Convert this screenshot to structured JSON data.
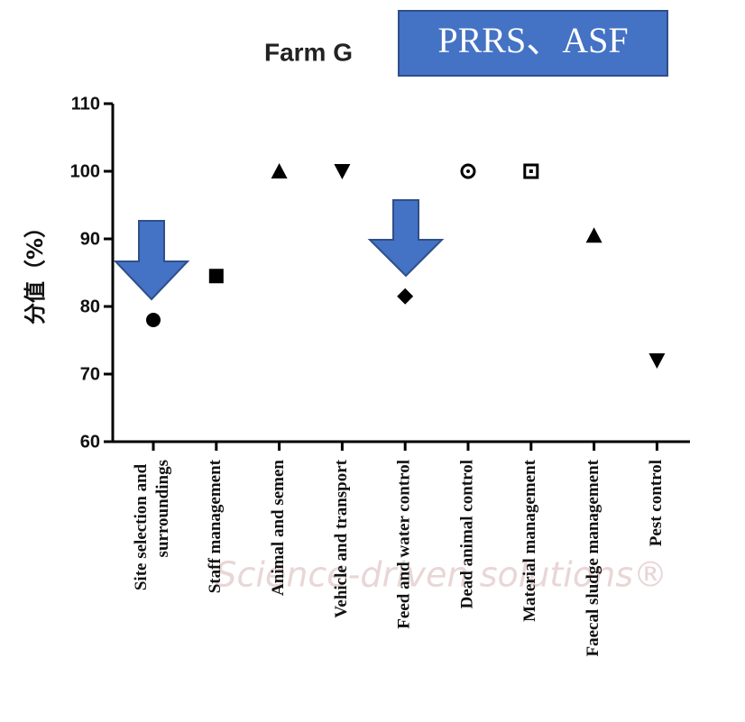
{
  "chart_data": {
    "type": "scatter",
    "title": "Farm G",
    "annotation": "PRRS、ASF",
    "y_label": "分值（%）",
    "watermark": "Science-driven solutions®",
    "categories": [
      "Site selection and surroundings",
      "Staff management",
      "Animal and semen",
      "Vehicle and transport",
      "Feed and water control",
      "Dead animal control",
      "Material management",
      "Faecal sludge management",
      "Pest control"
    ],
    "values": [
      78,
      84.5,
      100,
      100,
      81.5,
      100,
      100,
      90.5,
      72
    ],
    "markers": [
      "circle",
      "square",
      "triangle-up",
      "triangle-down",
      "diamond",
      "circle-dot",
      "square-dot",
      "triangle-up",
      "triangle-down"
    ],
    "color": "#000000",
    "ylim": [
      60,
      110
    ],
    "yticks": [
      60,
      70,
      80,
      90,
      100,
      110
    ]
  }
}
